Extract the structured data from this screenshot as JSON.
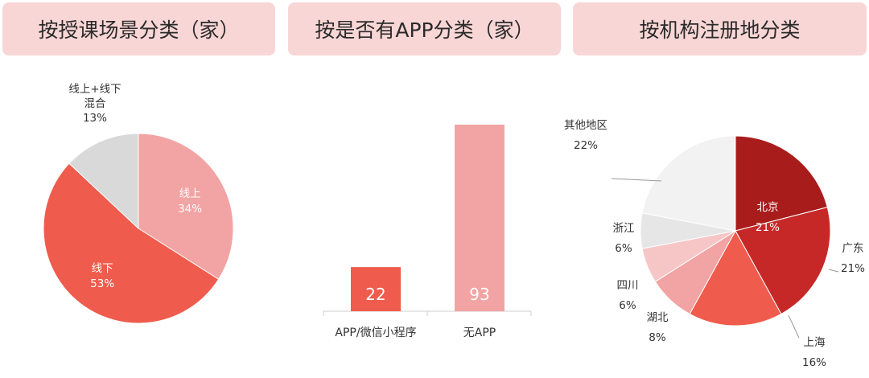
{
  "headers": {
    "scene": "按授课场景分类（家）",
    "app": "按是否有APP分类（家）",
    "region": "按机构注册地分类"
  },
  "chart_data": [
    {
      "type": "pie",
      "title": "按授课场景分类（家）",
      "slices": [
        {
          "label": "线上",
          "value": 34,
          "pct": "34%",
          "color": "#f2a3a3"
        },
        {
          "label": "线下",
          "value": 53,
          "pct": "53%",
          "color": "#ef5b4c"
        },
        {
          "label": "线上+线下混合",
          "label_lines": [
            "线上+线下",
            "混合"
          ],
          "value": 13,
          "pct": "13%",
          "color": "#d9d9d9"
        }
      ]
    },
    {
      "type": "bar",
      "title": "按是否有APP分类（家）",
      "categories": [
        "APP/微信小程序",
        "无APP"
      ],
      "values": [
        22,
        93
      ],
      "colors": [
        "#ef5b4c",
        "#f2a3a3"
      ]
    },
    {
      "type": "pie",
      "title": "按机构注册地分类",
      "slices": [
        {
          "label": "北京",
          "value": 21,
          "pct": "21%",
          "color": "#a81d1b"
        },
        {
          "label": "广东",
          "value": 21,
          "pct": "21%",
          "color": "#c62828"
        },
        {
          "label": "上海",
          "value": 16,
          "pct": "16%",
          "color": "#ef5b4c"
        },
        {
          "label": "湖北",
          "value": 8,
          "pct": "8%",
          "color": "#f2a3a3"
        },
        {
          "label": "四川",
          "value": 6,
          "pct": "6%",
          "color": "#f6c6c6"
        },
        {
          "label": "浙江",
          "value": 6,
          "pct": "6%",
          "color": "#e6e6e6"
        },
        {
          "label": "其他地区",
          "value": 22,
          "pct": "22%",
          "color": "#f2f2f2"
        }
      ]
    }
  ]
}
